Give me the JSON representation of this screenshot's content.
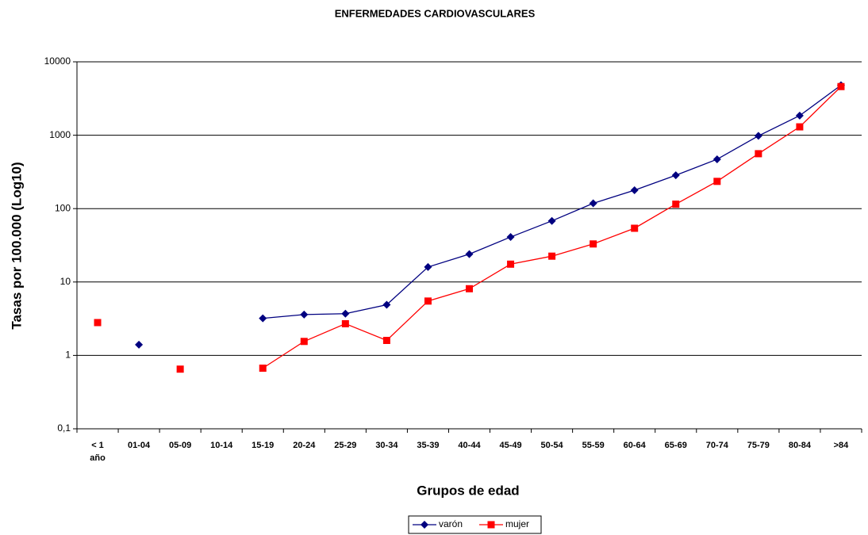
{
  "chart_data": {
    "type": "line",
    "title": "ENFERMEDADES CARDIOVASCULARES",
    "x_label": "Grupos de edad",
    "y_label": "Tasas por 100.000 (Log10)",
    "categories": [
      "< 1 año",
      "01-04",
      "05-09",
      "10-14",
      "15-19",
      "20-24",
      "25-29",
      "30-34",
      "35-39",
      "40-44",
      "45-49",
      "50-54",
      "55-59",
      "60-64",
      "65-69",
      "70-74",
      "75-79",
      "80-84",
      ">84"
    ],
    "series": [
      {
        "name": "varón",
        "color": "#000080",
        "marker": "diamond",
        "values": [
          null,
          1.4,
          null,
          null,
          3.2,
          3.6,
          3.7,
          4.9,
          16,
          24,
          41,
          68,
          118,
          178,
          285,
          470,
          980,
          1850,
          4800
        ]
      },
      {
        "name": "mujer",
        "color": "#ff0000",
        "marker": "square",
        "values": [
          2.8,
          null,
          0.65,
          null,
          0.67,
          1.55,
          2.7,
          1.6,
          5.5,
          8.1,
          17.5,
          22.5,
          33,
          54,
          115,
          235,
          560,
          1300,
          4600
        ]
      }
    ],
    "ylim": [
      0.1,
      10000
    ],
    "yticks": [
      {
        "value": 0.1,
        "label": "0,1"
      },
      1,
      10,
      100,
      1000,
      10000
    ],
    "log_scale": true,
    "grid": true,
    "legend": "bottom"
  }
}
